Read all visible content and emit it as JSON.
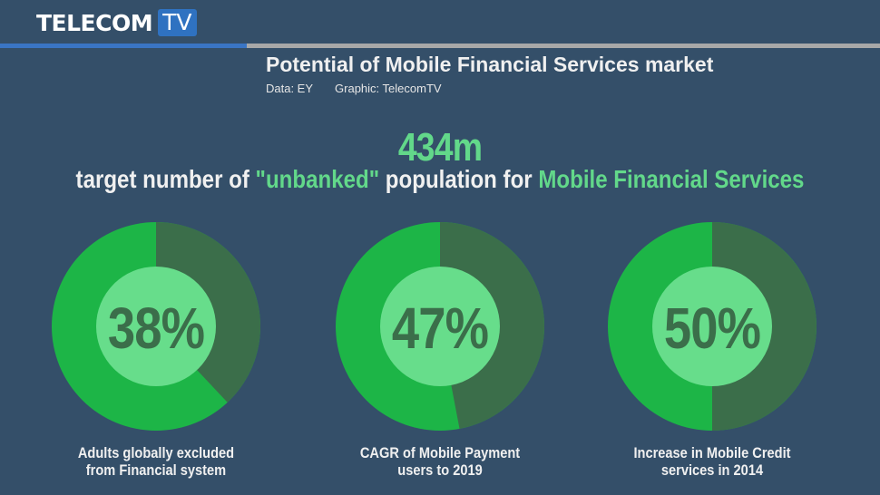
{
  "header": {
    "logo_word": "TELECOM",
    "logo_badge": "TV",
    "title": "Potential of Mobile Financial Services market",
    "credit_data": "Data: EY",
    "credit_graphic": "Graphic: TelecomTV"
  },
  "headline": {
    "value": "434m",
    "text_1": "target number of ",
    "text_hl1": "\"unbanked\"",
    "text_2": " population for ",
    "text_hl2": "Mobile Financial Services"
  },
  "colors": {
    "background": "#344f69",
    "accent_green": "#62d88a",
    "ring_bright": "#1db547",
    "ring_dark": "#3b6e4a",
    "center_light": "#67dd8b",
    "logo_blue": "#2f72c1"
  },
  "donuts": [
    {
      "pct_label": "38%",
      "value": 38,
      "line1": "Adults globally excluded",
      "line2": "from Financial system"
    },
    {
      "pct_label": "47%",
      "value": 47,
      "line1": "CAGR of Mobile Payment",
      "line2": "users to 2019"
    },
    {
      "pct_label": "50%",
      "value": 50,
      "line1": "Increase in Mobile Credit",
      "line2": "services in 2014"
    }
  ],
  "chart_data": {
    "type": "pie",
    "title": "Potential of Mobile Financial Services market",
    "subtitle": "434m target number of \"unbanked\" population for Mobile Financial Services",
    "categories": [
      "Adults globally excluded from Financial system",
      "CAGR of Mobile Payment users to 2019",
      "Increase in Mobile Credit services in 2014"
    ],
    "values": [
      38,
      47,
      50
    ],
    "unit": "%"
  }
}
